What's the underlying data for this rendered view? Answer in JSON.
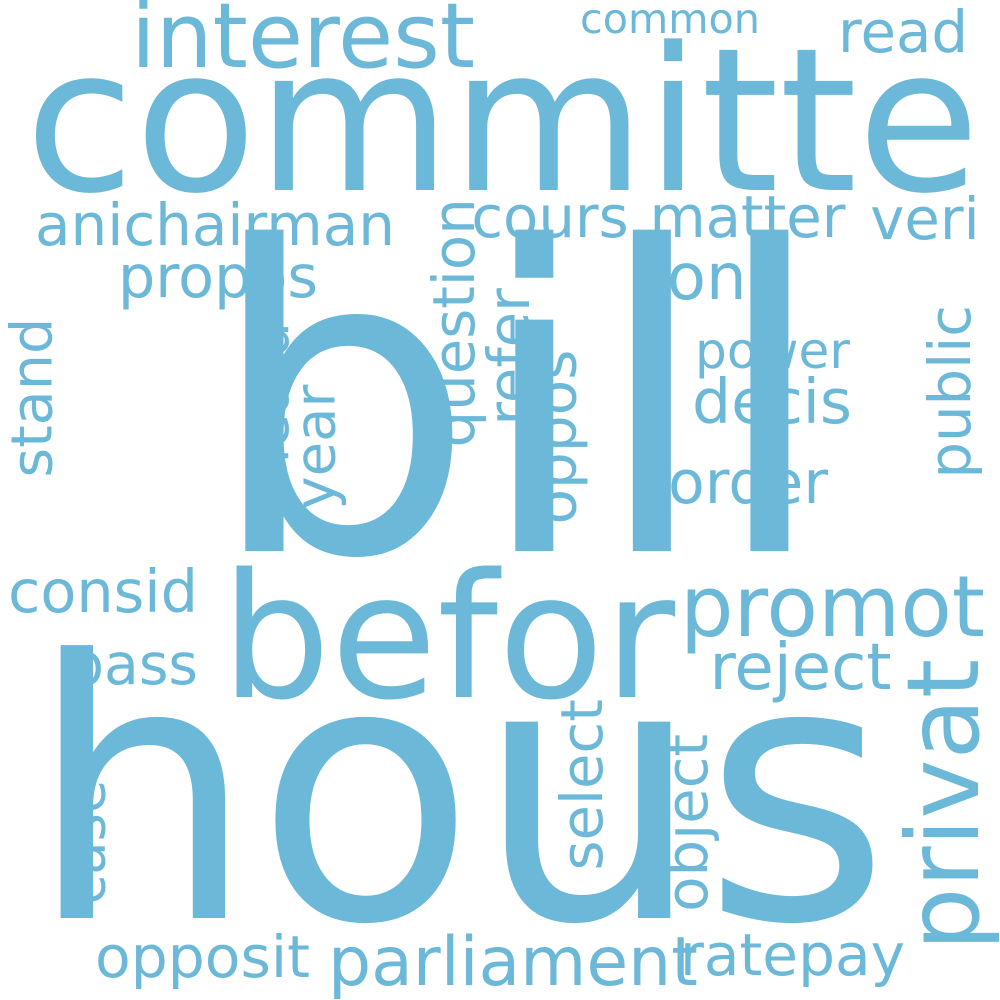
{
  "word_cloud": {
    "color": "#6cb8d8",
    "background": "#ffffff",
    "words": [
      {
        "text": "hous"
      },
      {
        "text": "bill"
      },
      {
        "text": "committe"
      },
      {
        "text": "befor"
      },
      {
        "text": "promot"
      },
      {
        "text": "interest"
      },
      {
        "text": "privat"
      },
      {
        "text": "parliament"
      },
      {
        "text": "anichairman"
      },
      {
        "text": "matter"
      },
      {
        "text": "cours"
      },
      {
        "text": "propos"
      },
      {
        "text": "question"
      },
      {
        "text": "ratepay"
      },
      {
        "text": "opposit"
      },
      {
        "text": "consid"
      },
      {
        "text": "reject"
      },
      {
        "text": "decis"
      },
      {
        "text": "power"
      },
      {
        "text": "order"
      },
      {
        "text": "pass"
      },
      {
        "text": "common"
      },
      {
        "text": "read"
      },
      {
        "text": "veri"
      },
      {
        "text": "onli"
      },
      {
        "text": "public"
      },
      {
        "text": "stand"
      },
      {
        "text": "heard"
      },
      {
        "text": "year"
      },
      {
        "text": "refer"
      },
      {
        "text": "oppos"
      },
      {
        "text": "select"
      },
      {
        "text": "object"
      },
      {
        "text": "case"
      }
    ]
  }
}
